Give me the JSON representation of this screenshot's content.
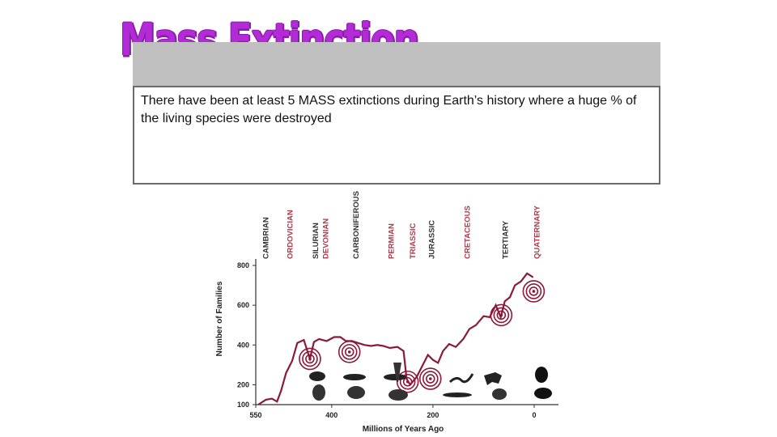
{
  "slide": {
    "title": "Mass Extinction",
    "body_text": "There have been at least 5 MASS extinctions during Earth’s history where a huge % of the living species were destroyed"
  },
  "colors": {
    "title": "#b22bd6",
    "curve": "#8b1a3a",
    "period_red": "#b03a4a",
    "period_dark": "#333333"
  },
  "chart_data": {
    "type": "line",
    "xlabel": "Millions of Years Ago",
    "ylabel": "Number of Families",
    "xlim": [
      550,
      0
    ],
    "ylim": [
      100,
      800
    ],
    "x_ticks": [
      550,
      400,
      200,
      0
    ],
    "y_ticks": [
      100,
      200,
      400,
      600,
      800
    ],
    "periods": [
      {
        "name": "CAMBRIAN",
        "x": 538,
        "extinction": false
      },
      {
        "name": "ORDOVICIAN",
        "x": 490,
        "extinction": true
      },
      {
        "name": "SILURIAN",
        "x": 440,
        "extinction": false
      },
      {
        "name": "DEVONIAN",
        "x": 420,
        "extinction": true
      },
      {
        "name": "CARBONIFEROUS",
        "x": 360,
        "extinction": false
      },
      {
        "name": "PERMIAN",
        "x": 290,
        "extinction": true
      },
      {
        "name": "TRIASSIC",
        "x": 248,
        "extinction": true
      },
      {
        "name": "JURASSIC",
        "x": 210,
        "extinction": false
      },
      {
        "name": "CRETACEOUS",
        "x": 140,
        "extinction": true
      },
      {
        "name": "TERTIARY",
        "x": 65,
        "extinction": false
      },
      {
        "name": "QUATERNARY",
        "x": 2,
        "extinction": true
      }
    ],
    "series": [
      {
        "x": [
          545,
          530,
          518,
          508,
          500,
          490,
          478,
          468,
          455,
          443,
          435,
          425,
          410,
          395,
          383,
          372,
          360,
          348,
          335,
          322,
          310,
          298,
          285,
          270,
          258,
          252,
          245,
          232,
          220,
          210,
          200,
          190,
          180,
          168,
          155,
          140,
          128,
          115,
          100,
          88,
          76,
          66,
          58,
          48,
          38,
          26,
          14,
          2
        ],
        "y": [
          100,
          125,
          130,
          115,
          170,
          260,
          320,
          410,
          425,
          330,
          415,
          430,
          420,
          440,
          440,
          420,
          420,
          410,
          400,
          395,
          400,
          395,
          385,
          390,
          370,
          230,
          200,
          240,
          300,
          350,
          325,
          310,
          370,
          405,
          390,
          430,
          480,
          500,
          545,
          540,
          600,
          540,
          620,
          640,
          700,
          720,
          760,
          740
        ]
      }
    ],
    "extinctions": [
      {
        "x": 443,
        "y": 330
      },
      {
        "x": 365,
        "y": 365
      },
      {
        "x": 250,
        "y": 215
      },
      {
        "x": 205,
        "y": 230
      },
      {
        "x": 65,
        "y": 550
      },
      {
        "x": 1,
        "y": 670
      }
    ]
  }
}
